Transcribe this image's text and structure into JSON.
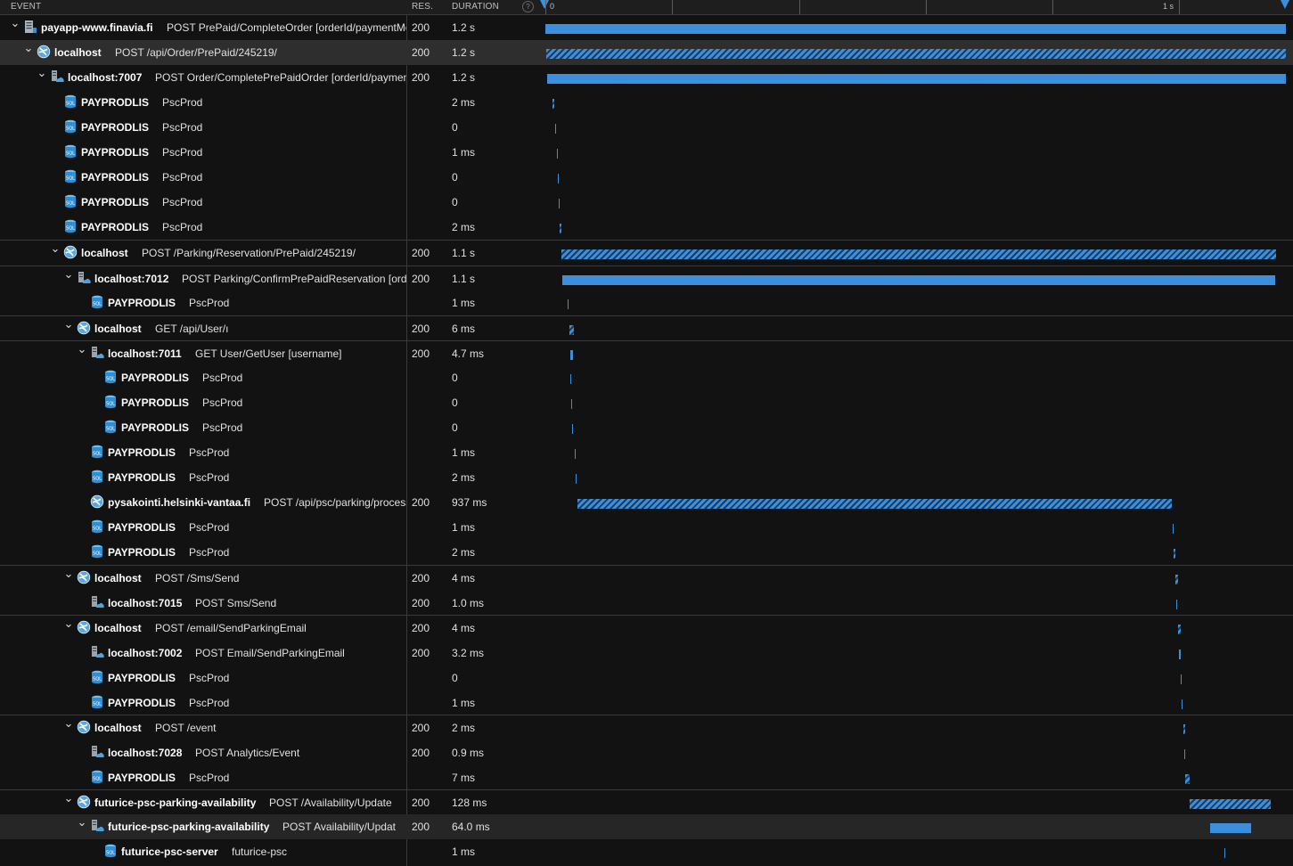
{
  "header": {
    "event": "EVENT",
    "res": "RES.",
    "duration": "DURATION",
    "help": "?",
    "tick_start": "0",
    "tick_end": "1 s"
  },
  "rows": [
    {
      "name": "payapp-www.finavia.fi",
      "detail": "POST PrePaid/CompleteOrder [orderId/paymentMe",
      "res": "200",
      "dur": "1.2 s"
    },
    {
      "name": "localhost",
      "detail": "POST /api/Order/PrePaid/245219/",
      "res": "200",
      "dur": "1.2 s"
    },
    {
      "name": "localhost:7007",
      "detail": "POST Order/CompletePrePaidOrder [orderId/payment",
      "res": "200",
      "dur": "1.2 s"
    },
    {
      "name": "PAYPRODLIS",
      "detail": "PscProd",
      "res": "",
      "dur": "2 ms"
    },
    {
      "name": "PAYPRODLIS",
      "detail": "PscProd",
      "res": "",
      "dur": "0"
    },
    {
      "name": "PAYPRODLIS",
      "detail": "PscProd",
      "res": "",
      "dur": "1 ms"
    },
    {
      "name": "PAYPRODLIS",
      "detail": "PscProd",
      "res": "",
      "dur": "0"
    },
    {
      "name": "PAYPRODLIS",
      "detail": "PscProd",
      "res": "",
      "dur": "0"
    },
    {
      "name": "PAYPRODLIS",
      "detail": "PscProd",
      "res": "",
      "dur": "2 ms"
    },
    {
      "name": "localhost",
      "detail": "POST /Parking/Reservation/PrePaid/245219/",
      "res": "200",
      "dur": "1.1 s"
    },
    {
      "name": "localhost:7012",
      "detail": "POST Parking/ConfirmPrePaidReservation [order",
      "res": "200",
      "dur": "1.1 s"
    },
    {
      "name": "PAYPRODLIS",
      "detail": "PscProd",
      "res": "",
      "dur": "1 ms"
    },
    {
      "name": "localhost",
      "detail": "GET /api/User/ı",
      "res": "200",
      "dur": "6 ms"
    },
    {
      "name": "localhost:7011",
      "detail": "GET User/GetUser [username]",
      "res": "200",
      "dur": "4.7 ms"
    },
    {
      "name": "PAYPRODLIS",
      "detail": "PscProd",
      "res": "",
      "dur": "0"
    },
    {
      "name": "PAYPRODLIS",
      "detail": "PscProd",
      "res": "",
      "dur": "0"
    },
    {
      "name": "PAYPRODLIS",
      "detail": "PscProd",
      "res": "",
      "dur": "0"
    },
    {
      "name": "PAYPRODLIS",
      "detail": "PscProd",
      "res": "",
      "dur": "1 ms"
    },
    {
      "name": "PAYPRODLIS",
      "detail": "PscProd",
      "res": "",
      "dur": "2 ms"
    },
    {
      "name": "pysakointi.helsinki-vantaa.fi",
      "detail": "POST /api/psc/parking/process",
      "res": "200",
      "dur": "937 ms"
    },
    {
      "name": "PAYPRODLIS",
      "detail": "PscProd",
      "res": "",
      "dur": "1 ms"
    },
    {
      "name": "PAYPRODLIS",
      "detail": "PscProd",
      "res": "",
      "dur": "2 ms"
    },
    {
      "name": "localhost",
      "detail": "POST /Sms/Send",
      "res": "200",
      "dur": "4 ms"
    },
    {
      "name": "localhost:7015",
      "detail": "POST Sms/Send",
      "res": "200",
      "dur": "1.0 ms"
    },
    {
      "name": "localhost",
      "detail": "POST /email/SendParkingEmail",
      "res": "200",
      "dur": "4 ms"
    },
    {
      "name": "localhost:7002",
      "detail": "POST Email/SendParkingEmail",
      "res": "200",
      "dur": "3.2 ms"
    },
    {
      "name": "PAYPRODLIS",
      "detail": "PscProd",
      "res": "",
      "dur": "0"
    },
    {
      "name": "PAYPRODLIS",
      "detail": "PscProd",
      "res": "",
      "dur": "1 ms"
    },
    {
      "name": "localhost",
      "detail": "POST /event",
      "res": "200",
      "dur": "2 ms"
    },
    {
      "name": "localhost:7028",
      "detail": "POST Analytics/Event",
      "res": "200",
      "dur": "0.9 ms"
    },
    {
      "name": "PAYPRODLIS",
      "detail": "PscProd",
      "res": "",
      "dur": "7 ms"
    },
    {
      "name": "futurice-psc-parking-availability",
      "detail": "POST /Availability/Update",
      "res": "200",
      "dur": "128 ms"
    },
    {
      "name": "futurice-psc-parking-availability",
      "detail": "POST Availability/Updat",
      "res": "200",
      "dur": "64.0 ms"
    },
    {
      "name": "futurice-psc-server",
      "detail": "futurice-psc",
      "res": "",
      "dur": "1 ms"
    }
  ]
}
